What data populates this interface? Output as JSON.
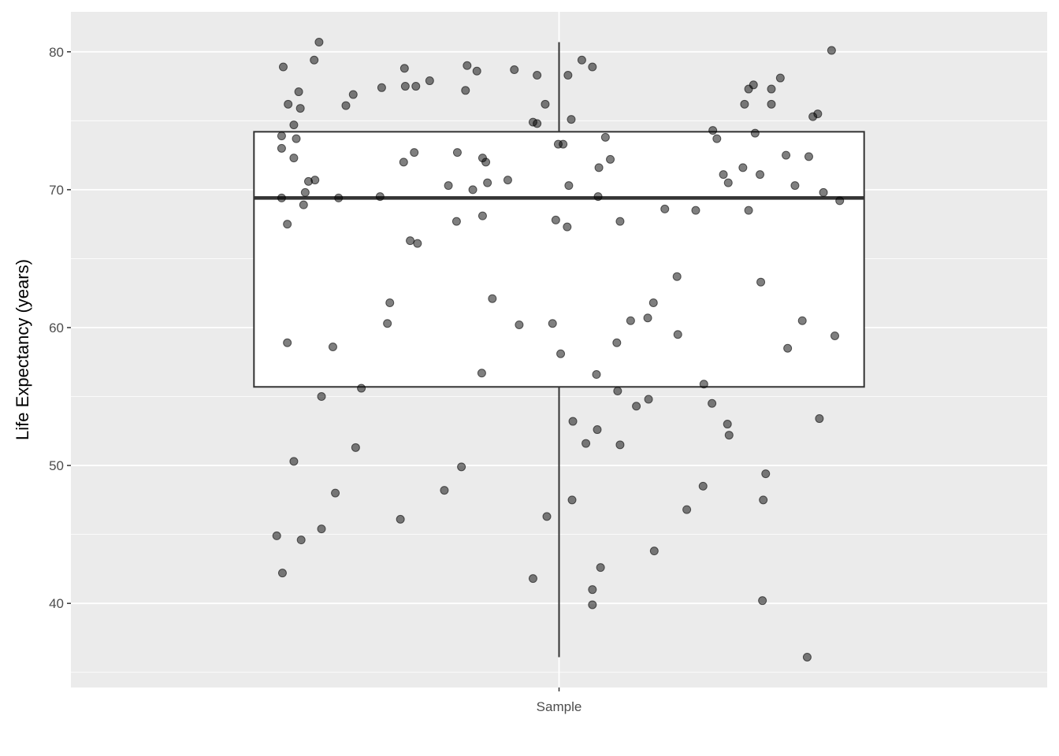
{
  "chart_data": {
    "type": "boxplot with jittered points",
    "title": "",
    "xlabel": "",
    "ylabel": "Life Expectancy (years)",
    "categories": [
      "Sample"
    ],
    "ylim": [
      33.9,
      82.9
    ],
    "yticks": [
      40,
      50,
      60,
      70,
      80
    ],
    "grid": true,
    "background": "#EBEBEB",
    "box": {
      "category": "Sample",
      "lower_whisker": 36.1,
      "q1": 55.7,
      "median": 69.4,
      "q3": 74.2,
      "upper_whisker": 80.7
    },
    "point_color": "#000000",
    "point_alpha": 0.5,
    "points": [
      [
        0.705,
        80.7
      ],
      [
        0.661,
        78.9
      ],
      [
        0.699,
        79.4
      ],
      [
        0.667,
        76.2
      ],
      [
        0.68,
        77.1
      ],
      [
        0.682,
        75.9
      ],
      [
        0.674,
        74.7
      ],
      [
        0.659,
        73.9
      ],
      [
        0.677,
        73.7
      ],
      [
        0.659,
        73.0
      ],
      [
        0.674,
        72.3
      ],
      [
        0.7,
        70.7
      ],
      [
        0.692,
        70.6
      ],
      [
        0.688,
        69.8
      ],
      [
        0.659,
        69.4
      ],
      [
        0.686,
        68.9
      ],
      [
        0.729,
        69.4
      ],
      [
        0.666,
        67.5
      ],
      [
        0.738,
        76.1
      ],
      [
        0.747,
        76.9
      ],
      [
        0.782,
        77.4
      ],
      [
        0.81,
        78.8
      ],
      [
        0.811,
        77.5
      ],
      [
        0.824,
        77.5
      ],
      [
        0.841,
        77.9
      ],
      [
        0.887,
        79.0
      ],
      [
        0.899,
        78.6
      ],
      [
        0.885,
        77.2
      ],
      [
        0.945,
        78.7
      ],
      [
        0.973,
        78.3
      ],
      [
        0.983,
        76.2
      ],
      [
        0.968,
        74.9
      ],
      [
        0.973,
        74.8
      ],
      [
        1.011,
        78.3
      ],
      [
        1.028,
        79.4
      ],
      [
        1.041,
        78.9
      ],
      [
        1.015,
        75.1
      ],
      [
        0.999,
        73.3
      ],
      [
        1.005,
        73.3
      ],
      [
        1.057,
        73.8
      ],
      [
        1.063,
        72.2
      ],
      [
        1.049,
        71.6
      ],
      [
        1.012,
        70.3
      ],
      [
        1.048,
        69.5
      ],
      [
        0.996,
        67.8
      ],
      [
        1.01,
        67.3
      ],
      [
        1.075,
        67.7
      ],
      [
        0.809,
        72.0
      ],
      [
        0.822,
        72.7
      ],
      [
        0.875,
        72.7
      ],
      [
        0.864,
        70.3
      ],
      [
        0.906,
        72.3
      ],
      [
        0.91,
        72.0
      ],
      [
        0.894,
        70.0
      ],
      [
        0.912,
        70.5
      ],
      [
        0.937,
        70.7
      ],
      [
        0.78,
        69.5
      ],
      [
        0.906,
        68.1
      ],
      [
        0.874,
        67.7
      ],
      [
        0.817,
        66.3
      ],
      [
        0.826,
        66.1
      ],
      [
        0.666,
        58.9
      ],
      [
        0.722,
        58.6
      ],
      [
        0.708,
        55.0
      ],
      [
        0.757,
        55.6
      ],
      [
        0.789,
        60.3
      ],
      [
        0.792,
        61.8
      ],
      [
        0.918,
        62.1
      ],
      [
        0.951,
        60.2
      ],
      [
        0.992,
        60.3
      ],
      [
        1.002,
        58.1
      ],
      [
        0.905,
        56.7
      ],
      [
        0.674,
        50.3
      ],
      [
        0.75,
        51.3
      ],
      [
        0.88,
        49.9
      ],
      [
        0.725,
        48.0
      ],
      [
        0.859,
        48.2
      ],
      [
        0.653,
        44.9
      ],
      [
        0.683,
        44.6
      ],
      [
        0.708,
        45.4
      ],
      [
        0.805,
        46.1
      ],
      [
        0.66,
        42.2
      ],
      [
        0.985,
        46.3
      ],
      [
        0.968,
        41.8
      ],
      [
        1.016,
        47.5
      ],
      [
        1.017,
        53.2
      ],
      [
        1.033,
        51.6
      ],
      [
        1.047,
        52.6
      ],
      [
        1.075,
        51.5
      ],
      [
        1.046,
        56.6
      ],
      [
        1.072,
        55.4
      ],
      [
        1.095,
        54.3
      ],
      [
        1.11,
        54.8
      ],
      [
        1.071,
        58.9
      ],
      [
        1.088,
        60.5
      ],
      [
        1.109,
        60.7
      ],
      [
        1.116,
        61.8
      ],
      [
        1.051,
        42.6
      ],
      [
        1.041,
        41.0
      ],
      [
        1.041,
        39.9
      ],
      [
        1.117,
        43.8
      ],
      [
        1.157,
        46.8
      ],
      [
        1.177,
        48.5
      ],
      [
        1.178,
        55.9
      ],
      [
        1.188,
        54.5
      ],
      [
        1.207,
        53.0
      ],
      [
        1.209,
        52.2
      ],
      [
        1.146,
        59.5
      ],
      [
        1.145,
        63.7
      ],
      [
        1.13,
        68.6
      ],
      [
        1.168,
        68.5
      ],
      [
        1.189,
        74.3
      ],
      [
        1.194,
        73.7
      ],
      [
        1.202,
        71.1
      ],
      [
        1.208,
        70.5
      ],
      [
        1.226,
        71.6
      ],
      [
        1.233,
        68.5
      ],
      [
        1.247,
        71.1
      ],
      [
        1.228,
        76.2
      ],
      [
        1.233,
        77.3
      ],
      [
        1.239,
        77.6
      ],
      [
        1.241,
        74.1
      ],
      [
        1.261,
        77.3
      ],
      [
        1.272,
        78.1
      ],
      [
        1.261,
        76.2
      ],
      [
        1.279,
        72.5
      ],
      [
        1.29,
        70.3
      ],
      [
        1.307,
        72.4
      ],
      [
        1.312,
        75.3
      ],
      [
        1.318,
        75.5
      ],
      [
        1.335,
        80.1
      ],
      [
        1.325,
        69.8
      ],
      [
        1.345,
        69.2
      ],
      [
        1.248,
        63.3
      ],
      [
        1.299,
        60.5
      ],
      [
        1.281,
        58.5
      ],
      [
        1.339,
        59.4
      ],
      [
        1.32,
        53.4
      ],
      [
        1.254,
        49.4
      ],
      [
        1.251,
        47.5
      ],
      [
        1.25,
        40.2
      ],
      [
        1.305,
        36.1
      ]
    ]
  }
}
